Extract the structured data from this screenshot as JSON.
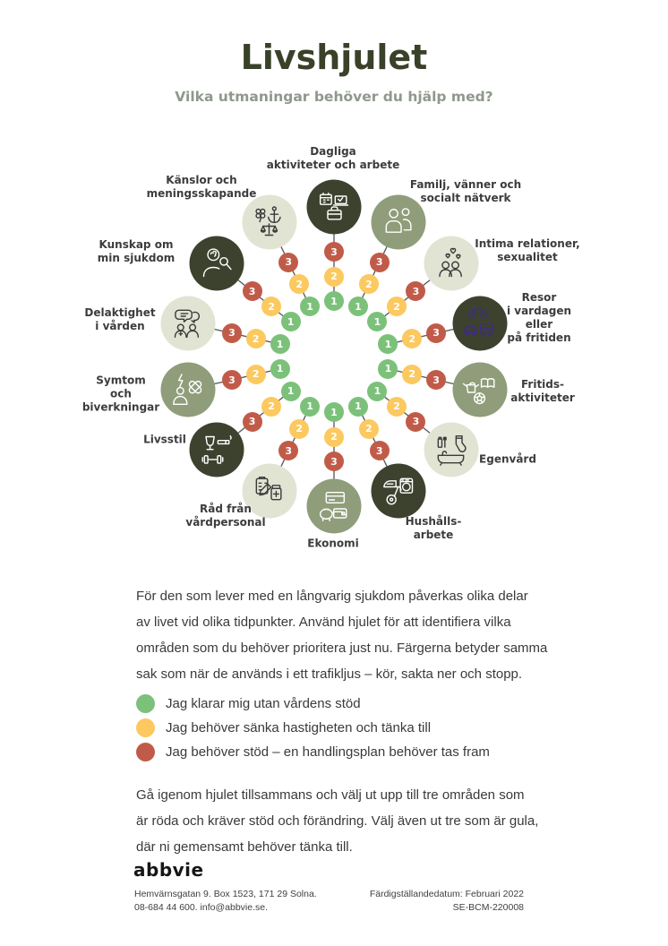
{
  "page": {
    "title": "Livshjulet",
    "subtitle": "Vilka utmaningar behöver du hjälp med?"
  },
  "wheel": {
    "dot_values": [
      "1",
      "2",
      "3"
    ],
    "colors": {
      "green": "#7cc17a",
      "yellow": "#fbc960",
      "red": "#c15b49",
      "dark_circle": "#3d422e",
      "sage_circle": "#8f9d7a",
      "light_circle": "#e1e4d3",
      "icon_on_dark": "#ffffff",
      "icon_on_light": "#3b3b3b",
      "spoke_line": "#555555"
    },
    "items": [
      {
        "label": "Dagliga\naktiviteter och arbete",
        "style": "dark",
        "icon": "daily-activities-icon"
      },
      {
        "label": "Familj, vänner och\nsocialt nätverk",
        "style": "sage",
        "icon": "family-icon"
      },
      {
        "label": "Intima relationer,\nsexualitet",
        "style": "light",
        "icon": "intimacy-icon"
      },
      {
        "label": "Resor\ni vardagen\neller\npå fritiden",
        "style": "dark",
        "icon": "travel-icon",
        "icon_color": "#3c2e77"
      },
      {
        "label": "Fritids-\naktiviteter",
        "style": "sage",
        "icon": "leisure-icon"
      },
      {
        "label": "Egenvård",
        "style": "light",
        "icon": "selfcare-icon"
      },
      {
        "label": "Hushålls-\narbete",
        "style": "dark",
        "icon": "household-icon"
      },
      {
        "label": "Ekonomi",
        "style": "sage",
        "icon": "economy-icon"
      },
      {
        "label": "Råd från\nvårdpersonal",
        "style": "light",
        "icon": "care-advice-icon"
      },
      {
        "label": "Livsstil",
        "style": "dark",
        "icon": "lifestyle-icon"
      },
      {
        "label": "Symtom\noch\nbiverkningar",
        "style": "sage",
        "icon": "symptoms-icon"
      },
      {
        "label": "Delaktighet\ni vården",
        "style": "light",
        "icon": "participation-icon"
      },
      {
        "label": "Kunskap om\nmin sjukdom",
        "style": "dark",
        "icon": "knowledge-icon"
      },
      {
        "label": "Känslor och\nmeningsskapande",
        "style": "light",
        "icon": "emotions-icon"
      }
    ]
  },
  "intro": "För den som lever med en långvarig sjukdom påverkas olika delar\nav livet vid olika tidpunkter. Använd hjulet för att identifiera vilka\nområden som du behöver prioritera just nu. Färgerna betyder samma\nsak som när de används i ett trafikljus – kör, sakta ner och stopp.",
  "legend": [
    {
      "color": "green",
      "text": "Jag klarar mig utan vårdens stöd"
    },
    {
      "color": "yellow",
      "text": "Jag behöver sänka hastigheten och tänka till"
    },
    {
      "color": "red",
      "text": "Jag behöver stöd – en handlingsplan behöver tas fram"
    }
  ],
  "outro": "Gå igenom hjulet tillsammans och välj ut upp till tre områden som\när röda och kräver stöd och förändring. Välj även ut tre som är gula,\ndär ni gemensamt behöver tänka till.",
  "footer": {
    "logo": "abbvie",
    "address_line1": "Hemvärnsgatan 9. Box 1523, 171 29 Solna.",
    "address_line2": "08-684 44 600. info@abbvie.se.",
    "meta_line1": "Färdigställandedatum: Februari 2022",
    "meta_line2": "SE-BCM-220008"
  }
}
